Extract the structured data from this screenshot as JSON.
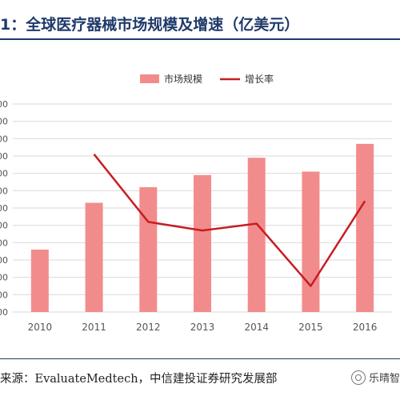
{
  "title": "1：全球医疗器械市场规模及增速（亿美元）",
  "source": "来源：EvaluateMedtech，中信建投证券研究发展部",
  "watermark": "乐晴智",
  "colors": {
    "bar": "#f28c8c",
    "line": "#c61d23",
    "title": "#1f3a6a",
    "grid": "#d9d9d9",
    "axis_text": "#555555"
  },
  "chart_data": {
    "type": "bar",
    "categories": [
      "2010",
      "2011",
      "2012",
      "2013",
      "2014",
      "2015",
      "2016"
    ],
    "series": [
      {
        "name": "市场规模",
        "type": "bar",
        "axis": "left",
        "values": [
          3.6,
          6.3,
          7.2,
          7.9,
          8.9,
          8.1,
          9.7
        ]
      },
      {
        "name": "增长率",
        "type": "line",
        "axis": "right",
        "values": [
          null,
          9.1,
          5.2,
          4.7,
          5.1,
          1.5,
          6.4
        ]
      }
    ],
    "y_left_tick_labels": [
      "00",
      "00",
      "00",
      "00",
      "00",
      "00",
      "00",
      "00",
      "00",
      "00",
      "00",
      "00",
      "00"
    ],
    "ylim": [
      0,
      12
    ],
    "y_right_lim": [
      0,
      12
    ],
    "grid": true,
    "legend_position": "top-center"
  }
}
